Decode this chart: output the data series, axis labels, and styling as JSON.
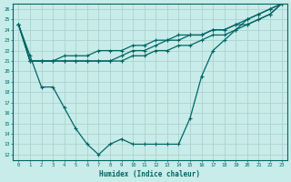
{
  "xlabel": "Humidex (Indice chaleur)",
  "ylabel": "",
  "xlim": [
    -0.5,
    23.5
  ],
  "ylim": [
    11.5,
    26.5
  ],
  "yticks": [
    12,
    13,
    14,
    15,
    16,
    17,
    18,
    19,
    20,
    21,
    22,
    23,
    24,
    25,
    26
  ],
  "xticks": [
    0,
    1,
    2,
    3,
    4,
    5,
    6,
    7,
    8,
    9,
    10,
    11,
    12,
    13,
    14,
    15,
    16,
    17,
    18,
    19,
    20,
    21,
    22,
    23
  ],
  "background_color": "#c8ece9",
  "grid_color": "#aad4cf",
  "line_color": "#006666",
  "lines": [
    [
      24.5,
      21.0,
      21.0,
      21.0,
      21.0,
      21.0,
      21.0,
      21.0,
      21.0,
      21.0,
      21.5,
      21.5,
      22.0,
      22.0,
      22.5,
      22.5,
      23.0,
      23.5,
      23.5,
      24.0,
      24.5,
      25.0,
      25.5,
      26.5
    ],
    [
      24.5,
      21.0,
      21.0,
      21.0,
      21.0,
      21.0,
      21.0,
      21.0,
      21.0,
      21.5,
      22.0,
      22.0,
      22.5,
      23.0,
      23.0,
      23.5,
      23.5,
      24.0,
      24.0,
      24.5,
      25.0,
      25.5,
      26.0,
      26.5
    ],
    [
      24.5,
      21.0,
      21.0,
      21.0,
      21.5,
      21.5,
      21.5,
      22.0,
      22.0,
      22.0,
      22.5,
      22.5,
      23.0,
      23.0,
      23.5,
      23.5,
      23.5,
      24.0,
      24.0,
      24.5,
      24.5,
      25.0,
      25.5,
      26.5
    ],
    [
      24.5,
      21.5,
      18.5,
      18.5,
      16.5,
      14.5,
      13.0,
      12.0,
      13.0,
      13.5,
      13.0,
      13.0,
      13.0,
      13.0,
      13.0,
      15.5,
      19.5,
      22.0,
      23.0,
      24.0,
      25.0,
      25.5,
      26.0,
      26.5
    ]
  ]
}
